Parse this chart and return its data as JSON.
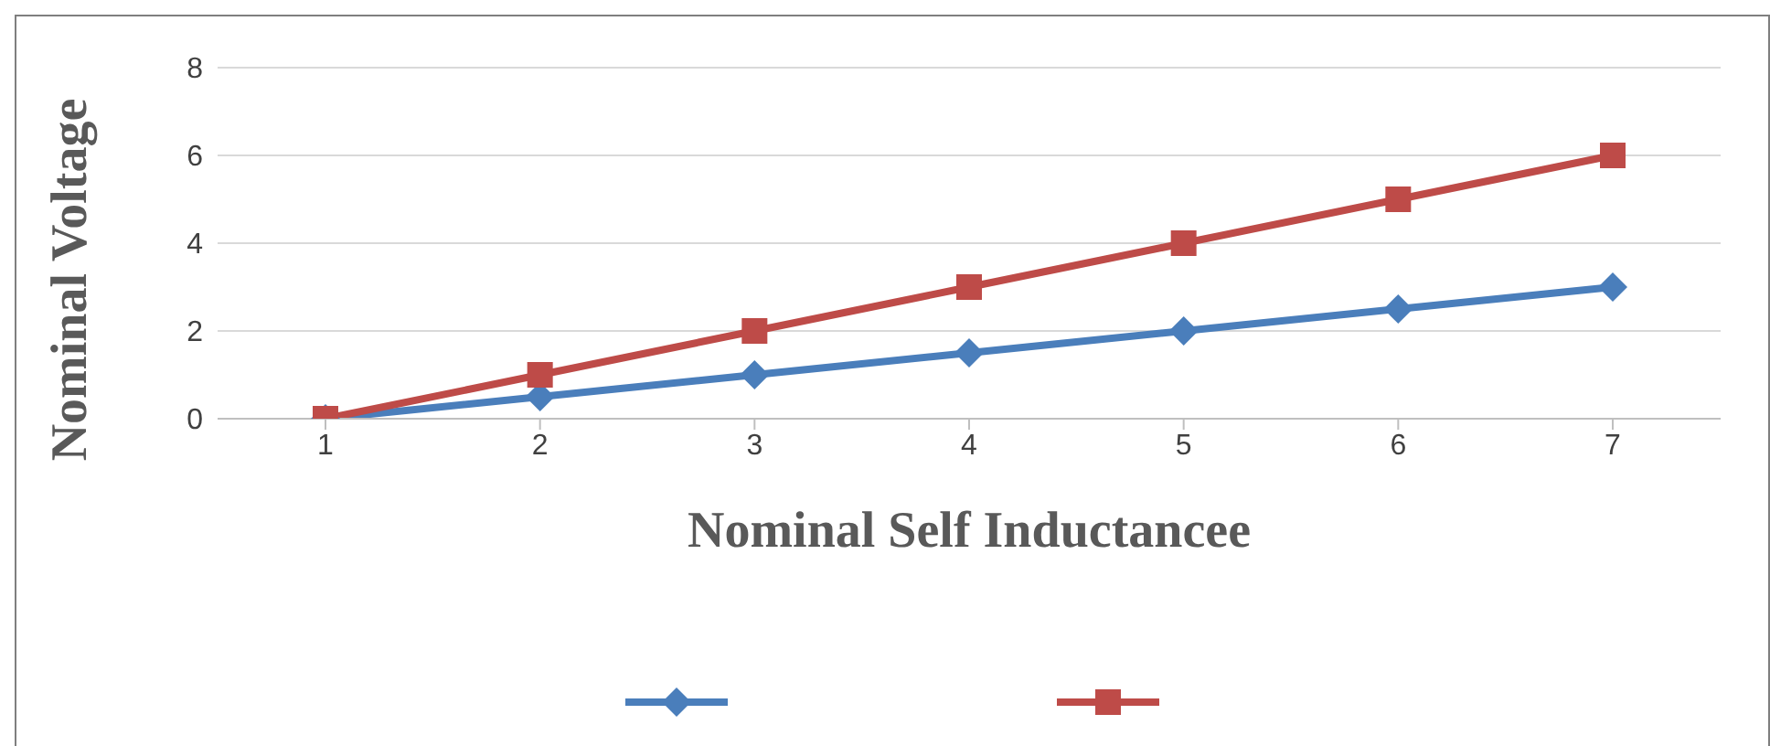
{
  "chart_data": {
    "type": "line",
    "xlabel": "Nominal Self Inductancee",
    "ylabel": "Nominal Voltage",
    "categories": [
      "1",
      "2",
      "3",
      "4",
      "5",
      "6",
      "7"
    ],
    "series": [
      {
        "color": "#4a7ebb",
        "marker": "diamond",
        "values": [
          0,
          0.5,
          1,
          1.5,
          2,
          2.5,
          3
        ]
      },
      {
        "color": "#be4b48",
        "marker": "square",
        "values": [
          0,
          1,
          2,
          3,
          4,
          5,
          6
        ]
      }
    ],
    "ylim": [
      0,
      8
    ],
    "yticks": [
      0,
      2,
      4,
      6,
      8
    ],
    "grid": "y"
  }
}
